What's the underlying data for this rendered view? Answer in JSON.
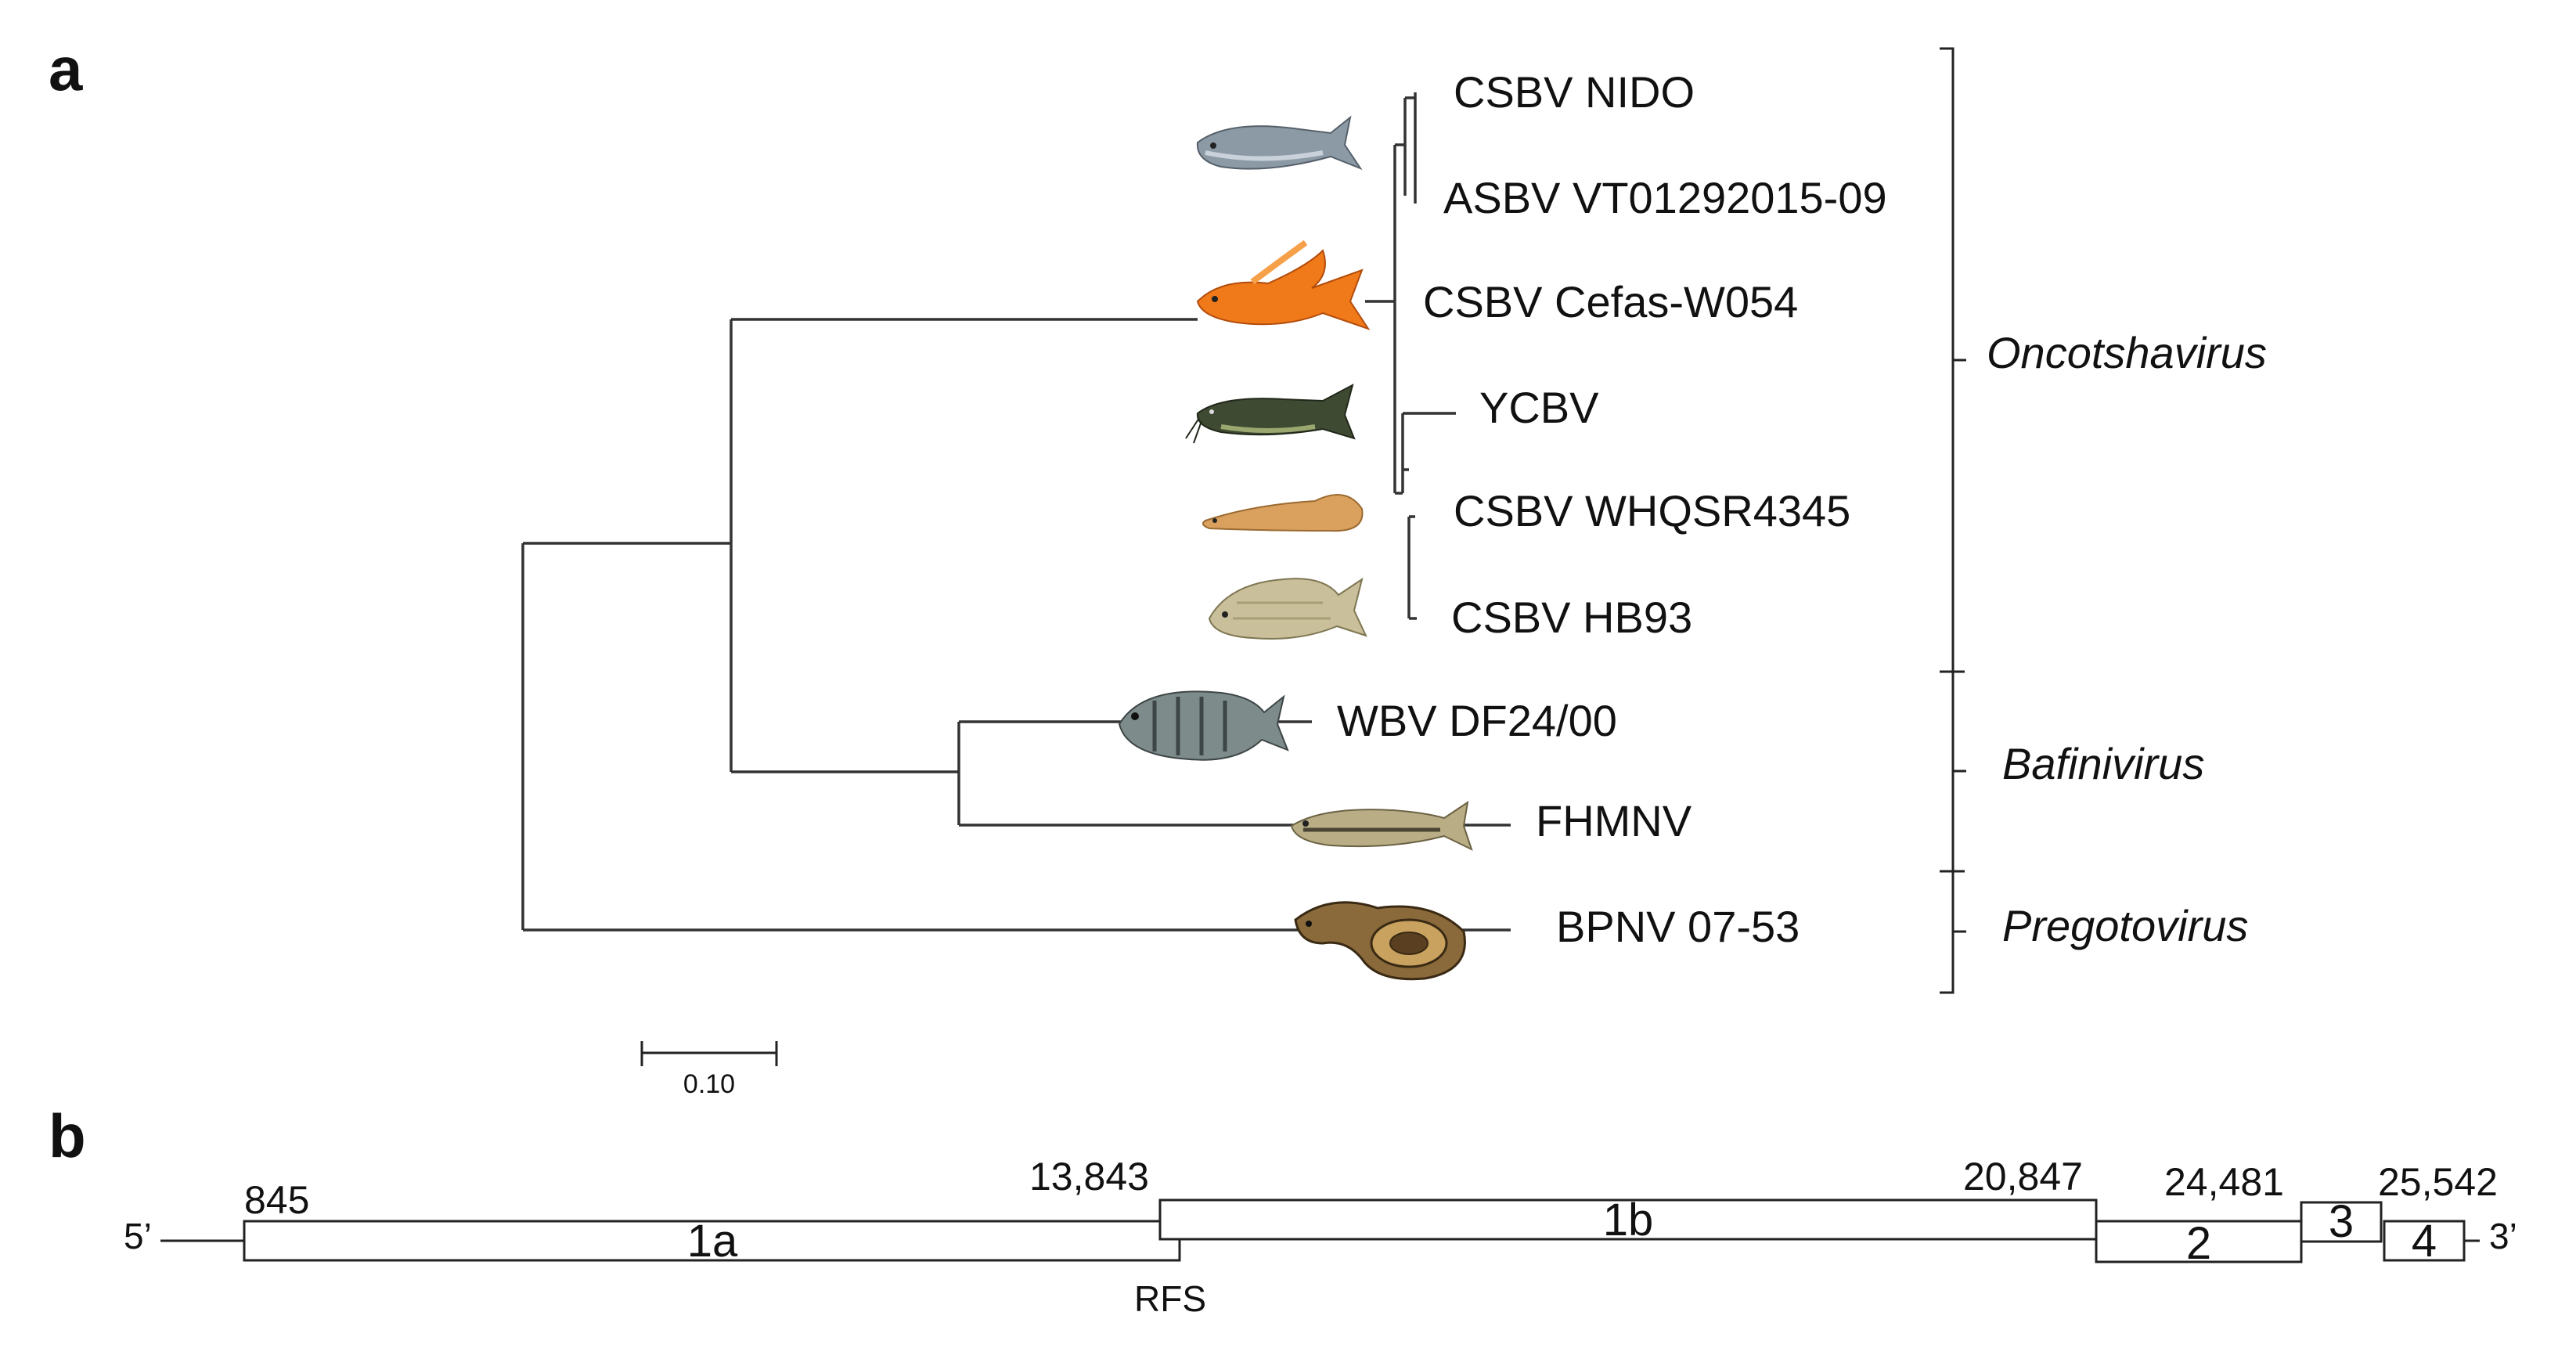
{
  "panels": {
    "a": "a",
    "b": "b"
  },
  "tree": {
    "taxa": [
      {
        "label": "CSBV NIDO",
        "host": "salmon-icon"
      },
      {
        "label": "ASBV VT01292015-09",
        "host": "salmon-icon"
      },
      {
        "label": "CSBV Cefas-W054",
        "host": "goldfish-icon"
      },
      {
        "label": "YCBV",
        "host": "catfish-icon"
      },
      {
        "label": "CSBV WHQSR4345",
        "host": "eel-icon"
      },
      {
        "label": "CSBV HB93",
        "host": "carp-icon"
      },
      {
        "label": "WBV DF24/00",
        "host": "bream-icon"
      },
      {
        "label": "FHMNV",
        "host": "minnow-icon"
      },
      {
        "label": "BPNV 07-53",
        "host": "python-icon"
      }
    ],
    "genera": [
      "Oncotshavirus",
      "Bafinivirus",
      "Pregotovirus"
    ],
    "scale_bar": {
      "label": "0.10",
      "value": 0.1
    }
  },
  "genome": {
    "five_prime": "5’",
    "three_prime": "3’",
    "positions": [
      "845",
      "13,843",
      "20,847",
      "24,481",
      "25,542"
    ],
    "orfs": [
      "1a",
      "1b",
      "2",
      "3",
      "4"
    ],
    "frameshift": "RFS"
  }
}
